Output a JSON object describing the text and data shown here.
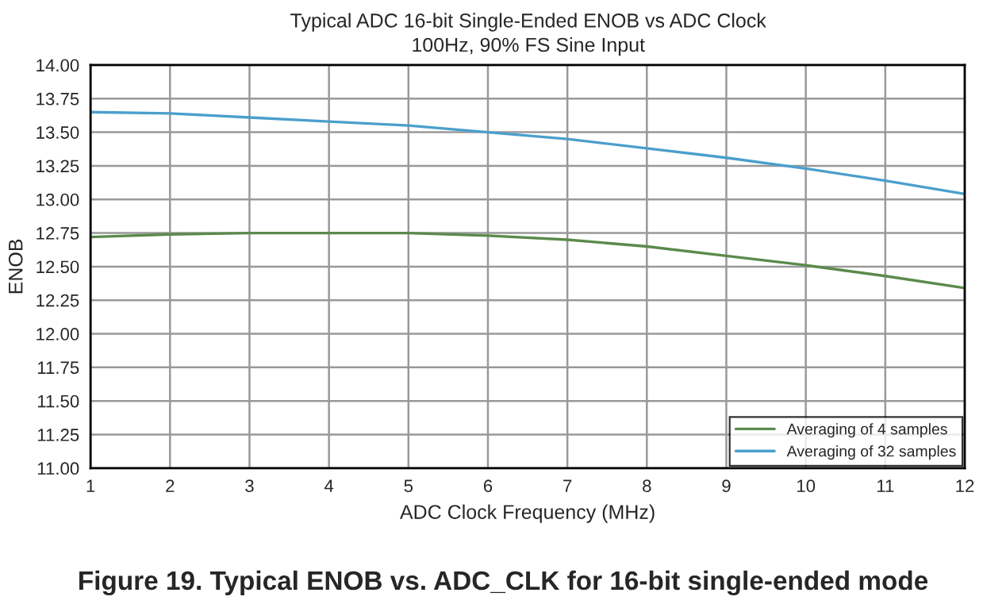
{
  "chart_data": {
    "type": "line",
    "title": "Typical ADC 16-bit Single-Ended ENOB vs ADC Clock",
    "subtitle": "100Hz, 90% FS Sine Input",
    "xlabel": "ADC Clock Frequency (MHz)",
    "ylabel": "ENOB",
    "x": [
      1,
      2,
      3,
      4,
      5,
      6,
      7,
      8,
      9,
      10,
      11,
      12
    ],
    "series": [
      {
        "name": "Averaging of 4 samples",
        "color": "#5b8a4c",
        "values": [
          12.72,
          12.74,
          12.75,
          12.75,
          12.75,
          12.73,
          12.7,
          12.65,
          12.58,
          12.51,
          12.43,
          12.34
        ]
      },
      {
        "name": "Averaging of 32 samples",
        "color": "#4a9fcc",
        "values": [
          13.65,
          13.64,
          13.61,
          13.58,
          13.55,
          13.5,
          13.45,
          13.38,
          13.31,
          13.23,
          13.14,
          13.04
        ]
      }
    ],
    "xlim": [
      1,
      12
    ],
    "xticks": [
      1,
      2,
      3,
      4,
      5,
      6,
      7,
      8,
      9,
      10,
      11,
      12
    ],
    "ylim": [
      11,
      14
    ],
    "yticks": [
      {
        "value": 11,
        "label": "11.00"
      },
      {
        "value": 11.25,
        "label": "11.25"
      },
      {
        "value": 11.5,
        "label": "11.50"
      },
      {
        "value": 11.75,
        "label": "11.75"
      },
      {
        "value": 12,
        "label": "12.00"
      },
      {
        "value": 12.25,
        "label": "12.25"
      },
      {
        "value": 12.5,
        "label": "12.50"
      },
      {
        "value": 12.75,
        "label": "12.75"
      },
      {
        "value": 13,
        "label": "13.00"
      },
      {
        "value": 13.25,
        "label": "13.25"
      },
      {
        "value": 13.5,
        "label": "13.50"
      },
      {
        "value": 13.75,
        "label": "13.75"
      },
      {
        "value": 14,
        "label": "14.00"
      }
    ],
    "grid": true,
    "legend": "bottom right",
    "marker": "none",
    "line_style": "solid",
    "annotations": [
      "Figure 19. Typical ENOB vs. ADC_CLK for 16-bit single-ended mode"
    ]
  }
}
